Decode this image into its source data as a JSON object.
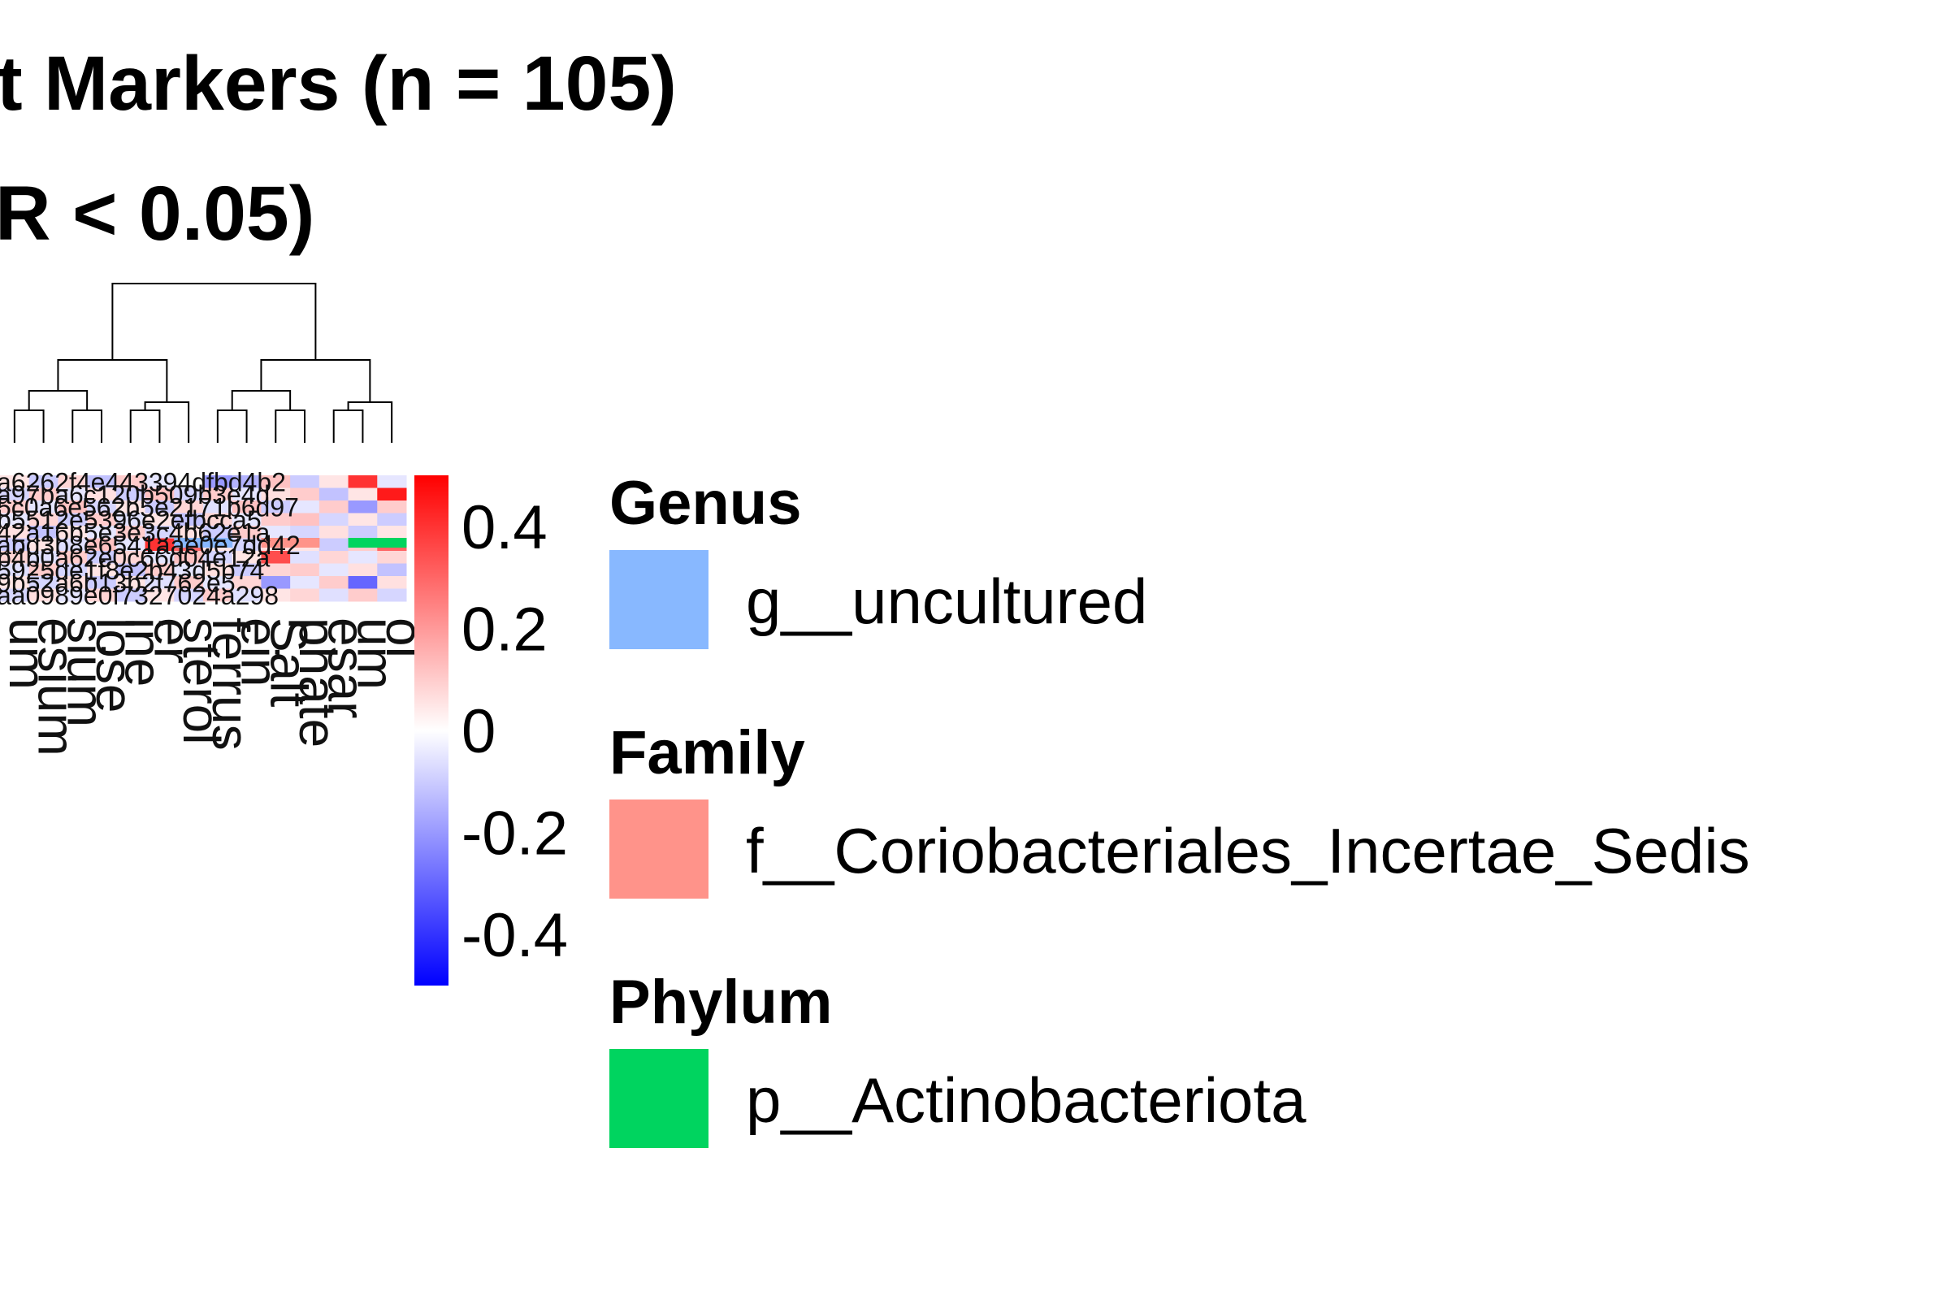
{
  "chart_data": {
    "type": "heatmap",
    "title_lines": [
      "t Markers (n = 105)",
      "R < 0.05)"
    ],
    "column_labels": [
      "um",
      "esium",
      "sium",
      "lose",
      "ine",
      "er",
      "sterol",
      "ferrus",
      "ein",
      "Salt",
      "phate",
      "esar",
      "um",
      "ol"
    ],
    "row_labels": [
      "a6262f4e443394dfbd4b2",
      "a97ba6c120b509b3e4d",
      "5c0a6e562b5e2171b6d97",
      "b5512e5396e2efbcca5",
      "42a16b5e3e3c4b62e1a",
      "abd3b8e6541aae0e7dd42",
      "b4b0a62e0c66d04e12a",
      "5925de1f8e2b43d5b74",
      "9b52a6b13b2f762e5",
      "aa0989e0f7327024a298"
    ],
    "color_scale": {
      "min": -0.5,
      "max": 0.5,
      "ticks": [
        0.4,
        0.2,
        0,
        -0.2,
        -0.4
      ],
      "tick_labels": [
        "0.4",
        "0.2",
        "0",
        "-0.2",
        "-0.4"
      ],
      "low_color": "#0000FF",
      "mid_color": "#FFFFFF",
      "high_color": "#FF0000"
    },
    "values": [
      [
        0.05,
        -0.1,
        0.08,
        -0.12,
        0.1,
        -0.05,
        0.0,
        -0.2,
        -0.15,
        0.12,
        -0.1,
        0.05,
        0.4,
        -0.05
      ],
      [
        -0.08,
        0.1,
        -0.05,
        0.06,
        -0.1,
        0.12,
        -0.08,
        0.1,
        -0.05,
        0.06,
        0.1,
        -0.12,
        0.05,
        0.45
      ],
      [
        0.1,
        -0.05,
        0.12,
        -0.08,
        0.05,
        -0.1,
        0.08,
        -0.06,
        0.12,
        -0.1,
        -0.05,
        0.1,
        -0.2,
        0.1
      ],
      [
        -0.05,
        0.08,
        -0.1,
        0.1,
        -0.06,
        0.05,
        -0.12,
        0.08,
        -0.05,
        0.1,
        0.12,
        -0.08,
        0.05,
        -0.1
      ],
      [
        0.06,
        -0.12,
        0.05,
        -0.05,
        0.1,
        -0.08,
        0.06,
        -0.1,
        0.1,
        -0.05,
        -0.08,
        0.06,
        -0.1,
        0.05
      ],
      [
        -0.1,
        0.05,
        -0.06,
        0.12,
        -0.05,
        0.4,
        0.3,
        0.05,
        -0.08,
        0.06,
        0.05,
        -0.1,
        0.1,
        0.3
      ],
      [
        0.08,
        -0.06,
        0.1,
        -0.1,
        0.08,
        -0.05,
        0.12,
        -0.08,
        0.05,
        0.35,
        -0.06,
        0.08,
        -0.05,
        0.08
      ],
      [
        -0.06,
        0.1,
        -0.08,
        0.05,
        -0.12,
        0.1,
        -0.05,
        0.06,
        -0.1,
        0.08,
        0.1,
        -0.05,
        0.06,
        -0.12
      ],
      [
        0.05,
        -0.08,
        0.06,
        -0.1,
        0.05,
        -0.06,
        0.1,
        -0.05,
        0.08,
        -0.2,
        -0.05,
        0.1,
        -0.3,
        0.06
      ],
      [
        -0.08,
        0.06,
        -0.05,
        0.08,
        -0.1,
        0.05,
        -0.08,
        0.1,
        -0.06,
        0.05,
        0.08,
        -0.06,
        0.1,
        -0.08
      ]
    ],
    "annotation_bar": [
      "",
      "",
      "",
      "",
      "",
      "",
      "g__uncultured",
      "g__uncultured",
      "",
      "f__Coriobacteriales_Incertae_Sedis",
      "f__Coriobacteriales_Incertae_Sedis",
      "",
      "p__Actinobacteriota",
      "p__Actinobacteriota"
    ],
    "legend": [
      {
        "title": "Genus",
        "label": "g__uncultured",
        "color": "#88B8FF"
      },
      {
        "title": "Family",
        "label": "f__Coriobacteriales_Incertae_Sedis",
        "color": "#FF938A"
      },
      {
        "title": "Phylum",
        "label": "p__Actinobacteriota",
        "color": "#00D45F"
      }
    ]
  }
}
